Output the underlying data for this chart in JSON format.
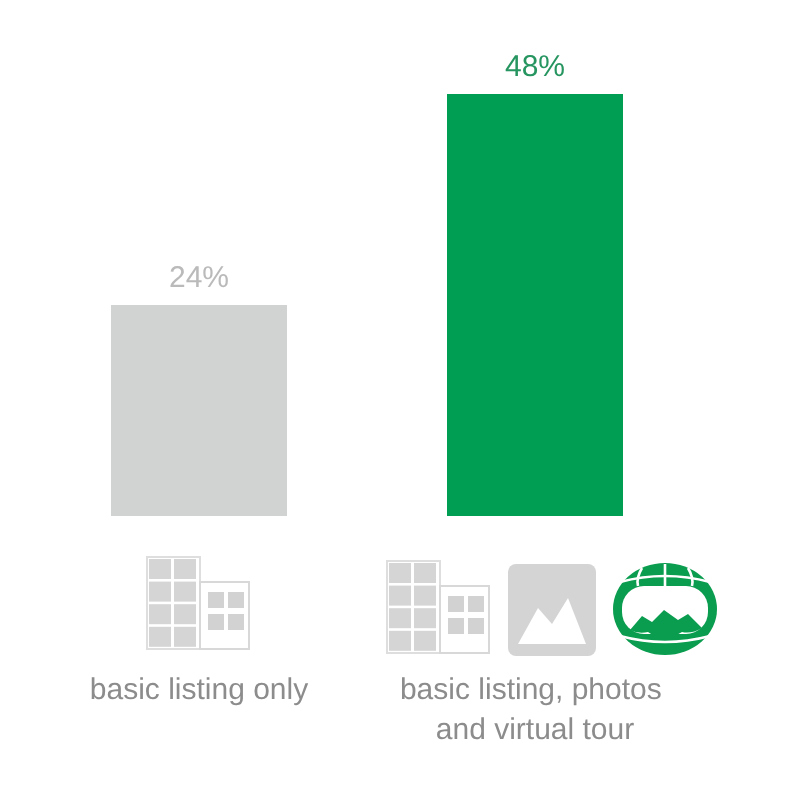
{
  "chart_data": {
    "type": "bar",
    "categories": [
      "basic listing only",
      "basic listing, photos and virtual tour"
    ],
    "values": [
      24,
      48
    ],
    "colors": [
      "#d1d3d2",
      "#009e52"
    ],
    "value_labels": [
      "24%",
      "48%"
    ],
    "tick_labels": "x"
  }
}
